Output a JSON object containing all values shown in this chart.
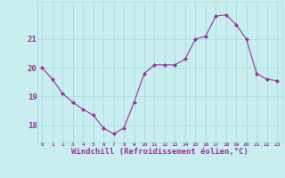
{
  "x": [
    0,
    1,
    2,
    3,
    4,
    5,
    6,
    7,
    8,
    9,
    10,
    11,
    12,
    13,
    14,
    15,
    16,
    17,
    18,
    19,
    20,
    21,
    22,
    23
  ],
  "y": [
    20.0,
    19.6,
    19.1,
    18.8,
    18.55,
    18.35,
    17.9,
    17.7,
    17.9,
    18.8,
    19.8,
    20.1,
    20.1,
    20.1,
    20.3,
    21.0,
    21.1,
    21.8,
    21.85,
    21.5,
    21.0,
    19.8,
    19.6,
    19.55
  ],
  "line_color": "#993399",
  "marker": "D",
  "marker_size": 2,
  "background_color": "#c8eef0",
  "grid_color": "#aadddd",
  "xlabel": "Windchill (Refroidissement éolien,°C)",
  "xlabel_color": "#993399",
  "tick_color": "#993399",
  "ylim": [
    17.4,
    22.3
  ],
  "xlim": [
    -0.5,
    23.5
  ],
  "yticks": [
    18,
    19,
    20,
    21
  ],
  "xtick_labels": [
    "0",
    "1",
    "2",
    "3",
    "4",
    "5",
    "6",
    "7",
    "8",
    "9",
    "10",
    "11",
    "12",
    "13",
    "14",
    "15",
    "16",
    "17",
    "18",
    "19",
    "20",
    "21",
    "22",
    "23"
  ]
}
